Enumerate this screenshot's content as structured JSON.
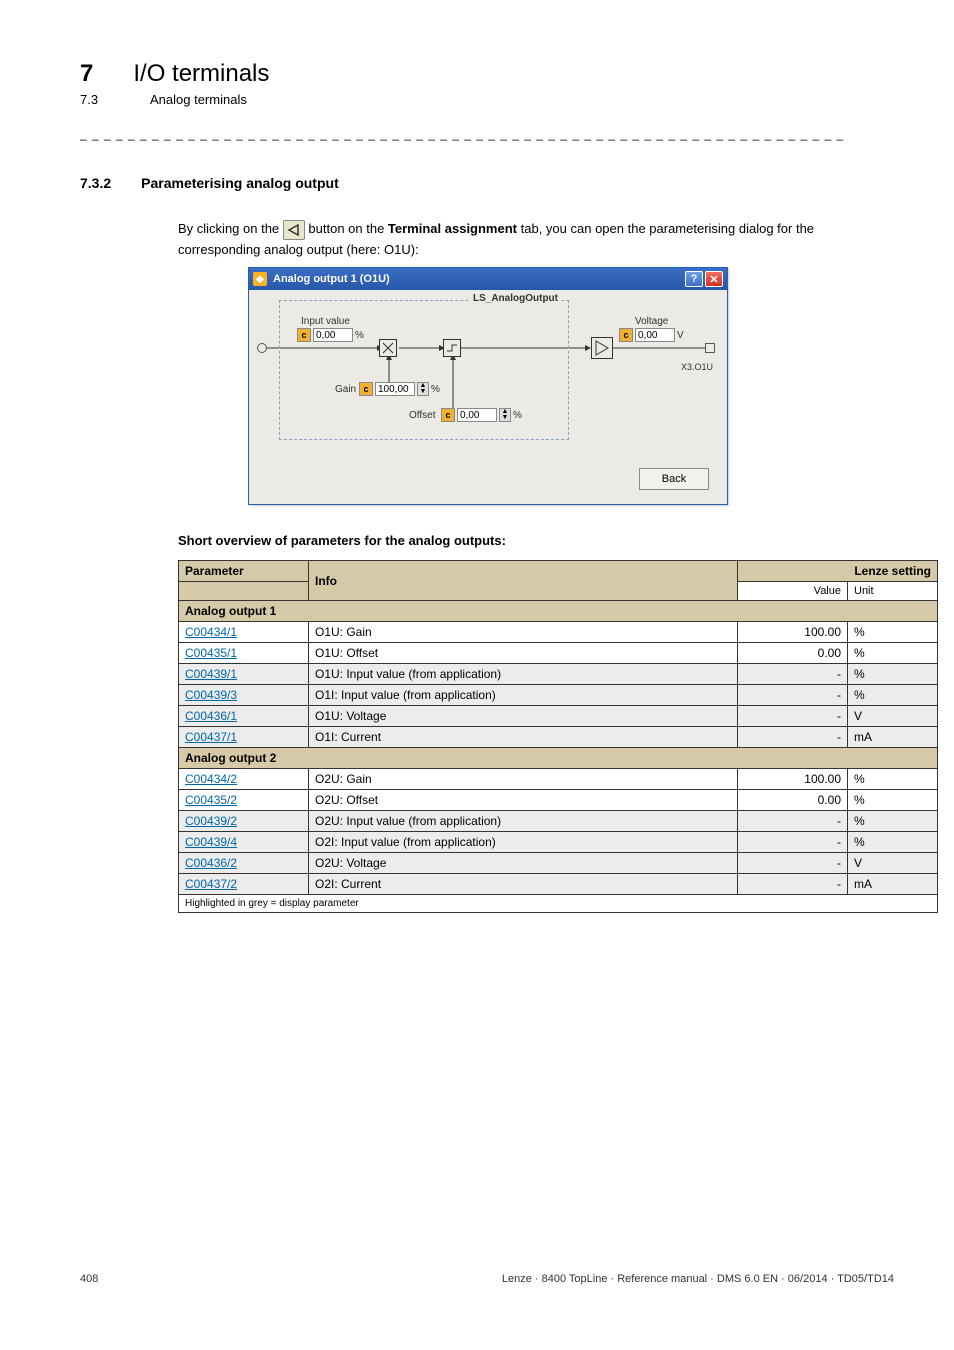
{
  "chapter": {
    "num": "7",
    "title": "I/O terminals"
  },
  "subsection": {
    "num": "7.3",
    "title": "Analog terminals"
  },
  "dashline": "_ _ _ _ _ _ _ _ _ _ _ _ _ _ _ _ _ _ _ _ _ _ _ _ _ _ _ _ _ _ _ _ _ _ _ _ _ _ _ _ _ _ _ _ _ _ _ _ _ _ _ _ _ _ _ _ _ _ _ _ _ _ _ _",
  "section": {
    "num": "7.3.2",
    "title": "Parameterising analog output"
  },
  "intro": {
    "pre": "By clicking on the ",
    "mid": " button on the ",
    "bold": "Terminal assignment",
    "post": " tab, you can open the parameterising dialog for the corresponding analog output (here: O1U):"
  },
  "dialog": {
    "title": "Analog output 1 (O1U)",
    "legend": "LS_AnalogOutput",
    "labels": {
      "input_value": "Input value",
      "voltage": "Voltage",
      "gain": "Gain",
      "offset": "Offset",
      "x301u": "X3.O1U"
    },
    "inputs": {
      "in_val": "0,00",
      "in_unit": "%",
      "volt_val": "0,00",
      "volt_unit": "V",
      "gain_val": "100,00",
      "gain_unit": "%",
      "offset_val": "0,00",
      "offset_unit": "%"
    },
    "back": "Back"
  },
  "table_caption": "Short overview of parameters for the analog outputs:",
  "headers": {
    "param": "Parameter",
    "info": "Info",
    "lenze": "Lenze setting",
    "value": "Value",
    "unit": "Unit"
  },
  "group1": "Analog output 1",
  "group2": "Analog output 2",
  "rows1": [
    {
      "p": "C00434/1",
      "i": "O1U: Gain",
      "v": "100.00",
      "u": "%",
      "grey": false
    },
    {
      "p": "C00435/1",
      "i": "O1U: Offset",
      "v": "0.00",
      "u": "%",
      "grey": false
    },
    {
      "p": "C00439/1",
      "i": "O1U: Input value (from application)",
      "v": "-",
      "u": "%",
      "grey": true
    },
    {
      "p": "C00439/3",
      "i": "O1I: Input value (from application)",
      "v": "-",
      "u": "%",
      "grey": true
    },
    {
      "p": "C00436/1",
      "i": "O1U: Voltage",
      "v": "-",
      "u": "V",
      "grey": true
    },
    {
      "p": "C00437/1",
      "i": "O1I: Current",
      "v": "-",
      "u": "mA",
      "grey": true
    }
  ],
  "rows2": [
    {
      "p": "C00434/2",
      "i": "O2U: Gain",
      "v": "100.00",
      "u": "%",
      "grey": false
    },
    {
      "p": "C00435/2",
      "i": "O2U: Offset",
      "v": "0.00",
      "u": "%",
      "grey": false
    },
    {
      "p": "C00439/2",
      "i": "O2U: Input value (from application)",
      "v": "-",
      "u": "%",
      "grey": true
    },
    {
      "p": "C00439/4",
      "i": "O2I: Input value (from application)",
      "v": "-",
      "u": "%",
      "grey": true
    },
    {
      "p": "C00436/2",
      "i": "O2U: Voltage",
      "v": "-",
      "u": "V",
      "grey": true
    },
    {
      "p": "C00437/2",
      "i": "O2I: Current",
      "v": "-",
      "u": "mA",
      "grey": true
    }
  ],
  "footnote": "Highlighted in grey = display parameter",
  "footer": {
    "page": "408",
    "right": "Lenze · 8400 TopLine · Reference manual · DMS 6.0 EN · 06/2014 · TD05/TD14"
  },
  "colors": {
    "titlebar_start": "#3b6ec5",
    "titlebar_end": "#2756a8",
    "header_bg": "#d6c9a8",
    "grey_bg": "#ececec",
    "link": "#0066aa",
    "dialog_bg": "#eceae5"
  }
}
